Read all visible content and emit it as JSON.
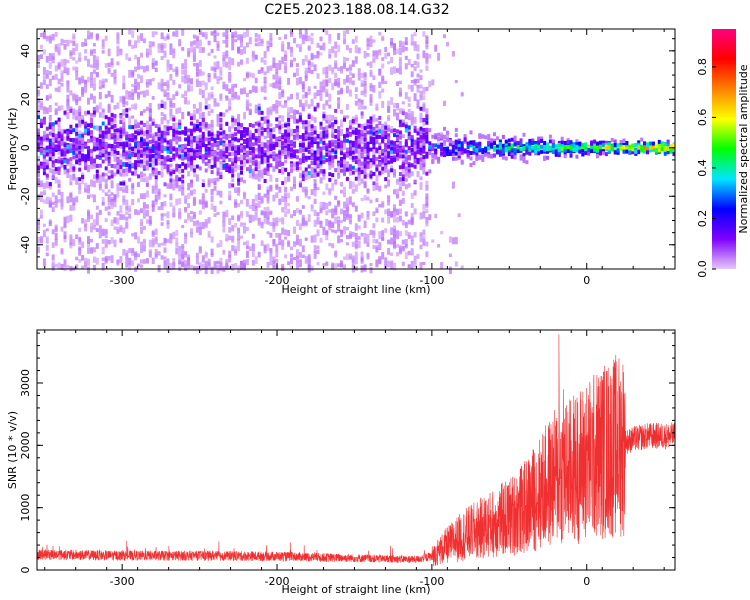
{
  "title": "C2E5.2023.188.08.14.G32",
  "chart_data": [
    {
      "type": "heatmap",
      "xlabel": "Height of straight line (km)",
      "ylabel": "Frequency (Hz)",
      "xlim": [
        -355,
        57
      ],
      "ylim": [
        -50,
        49
      ],
      "xticks": [
        -300,
        -200,
        -100,
        0
      ],
      "yticks": [
        -40,
        -20,
        0,
        20,
        40
      ],
      "colorbar": {
        "label": "Normalized spectral amplitude",
        "ticks": [
          0.0,
          0.2,
          0.4,
          0.6,
          0.8
        ],
        "range": [
          0,
          0.95
        ],
        "colormap": [
          "#e6c8f8",
          "#8000ff",
          "#0000ff",
          "#00e5ff",
          "#00ff00",
          "#ffff00",
          "#ff8000",
          "#ff0000",
          "#ff0080"
        ]
      },
      "grid": false
    },
    {
      "type": "line",
      "xlabel": "Height of straight line (km)",
      "ylabel": "SNR (10 * v/v)",
      "xlim": [
        -355,
        57
      ],
      "ylim": [
        0,
        3850
      ],
      "xticks": [
        -300,
        -200,
        -100,
        0
      ],
      "yticks": [
        0,
        1000,
        2000,
        3000
      ],
      "line_color": "#f03030",
      "grid": false,
      "series_profile": {
        "x": [
          -355,
          -300,
          -250,
          -200,
          -150,
          -110,
          -100,
          -90,
          -80,
          -70,
          -60,
          -50,
          -40,
          -30,
          -20,
          -10,
          0,
          10,
          20,
          30,
          40,
          57
        ],
        "y": [
          250,
          230,
          230,
          220,
          190,
          170,
          220,
          400,
          550,
          650,
          750,
          850,
          1000,
          1250,
          1500,
          1600,
          1750,
          1900,
          2000,
          2100,
          2150,
          2150
        ]
      },
      "spikes": [
        {
          "x": -18,
          "y": 3780
        },
        {
          "x": -15,
          "y": 2900
        }
      ]
    }
  ]
}
